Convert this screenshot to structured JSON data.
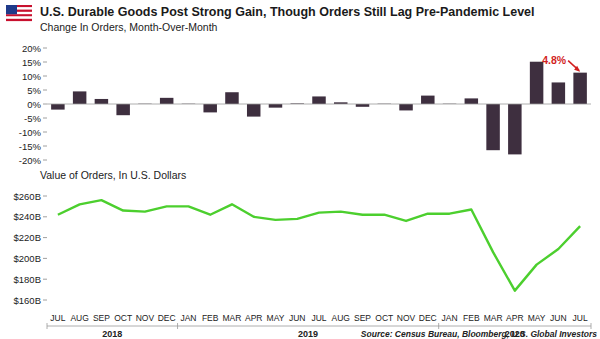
{
  "chart_data": [
    {
      "type": "bar",
      "title": "U.S. Durable Goods Post Strong Gain, Though Orders Still Lag Pre-Pandemic Level",
      "subtitle": "Change In Orders, Month-Over-Month",
      "annotation": "4.8%",
      "source": "Source: Census Bureau, Bloomberg, U.S. Global Investors",
      "categories": [
        "JUL",
        "AUG",
        "SEP",
        "OCT",
        "NOV",
        "DEC",
        "JAN",
        "FEB",
        "MAR",
        "APR",
        "MAY",
        "JUN",
        "JUL",
        "AUG",
        "SEP",
        "OCT",
        "NOV",
        "DEC",
        "JAN",
        "FEB",
        "MAR",
        "APR",
        "MAY",
        "JUN",
        "JUL"
      ],
      "values": [
        -2.0,
        4.5,
        1.8,
        -4.0,
        0.1,
        2.2,
        0.1,
        -3.0,
        4.2,
        -4.5,
        -1.3,
        0.2,
        2.7,
        0.6,
        -1.0,
        0.1,
        -2.3,
        3.0,
        0.1,
        2.0,
        -16.5,
        -18.0,
        15.1,
        7.7,
        11.2
      ],
      "color": "#3e2f3f",
      "ylim": [
        -20,
        20
      ],
      "yticks": [
        {
          "value": -20,
          "label": "-20%"
        },
        {
          "value": -15,
          "label": "-15%"
        },
        {
          "value": -10,
          "label": "-10%"
        },
        {
          "value": -5,
          "label": "-5%"
        },
        {
          "value": 0,
          "label": "0%"
        },
        {
          "value": 5,
          "label": "5%"
        },
        {
          "value": 10,
          "label": "10%"
        },
        {
          "value": 15,
          "label": "15%"
        },
        {
          "value": 20,
          "label": "20%"
        }
      ],
      "grid": false,
      "tick_labels": "y"
    },
    {
      "type": "line",
      "title": "Value of Orders, In U.S. Dollars",
      "categories": [
        "JUL",
        "AUG",
        "SEP",
        "OCT",
        "NOV",
        "DEC",
        "JAN",
        "FEB",
        "MAR",
        "APR",
        "MAY",
        "JUN",
        "JUL",
        "AUG",
        "SEP",
        "OCT",
        "NOV",
        "DEC",
        "JAN",
        "FEB",
        "MAR",
        "APR",
        "MAY",
        "JUN",
        "JUL"
      ],
      "x_groups": [
        "2018",
        "2019",
        "2020"
      ],
      "values": [
        242,
        252,
        256,
        246,
        245,
        250,
        250,
        242,
        252,
        240,
        237,
        238,
        244,
        245,
        242,
        242,
        236,
        243,
        243,
        247,
        206,
        169,
        194,
        209,
        231
      ],
      "color": "#4ccf2e",
      "ylim": [
        160,
        260
      ],
      "yticks": [
        {
          "value": 160,
          "label": "$160B"
        },
        {
          "value": 180,
          "label": "$180B"
        },
        {
          "value": 200,
          "label": "$200B"
        },
        {
          "value": 220,
          "label": "$220B"
        },
        {
          "value": 240,
          "label": "$240B"
        },
        {
          "value": 260,
          "label": "$260B"
        }
      ],
      "grid": false
    }
  ]
}
